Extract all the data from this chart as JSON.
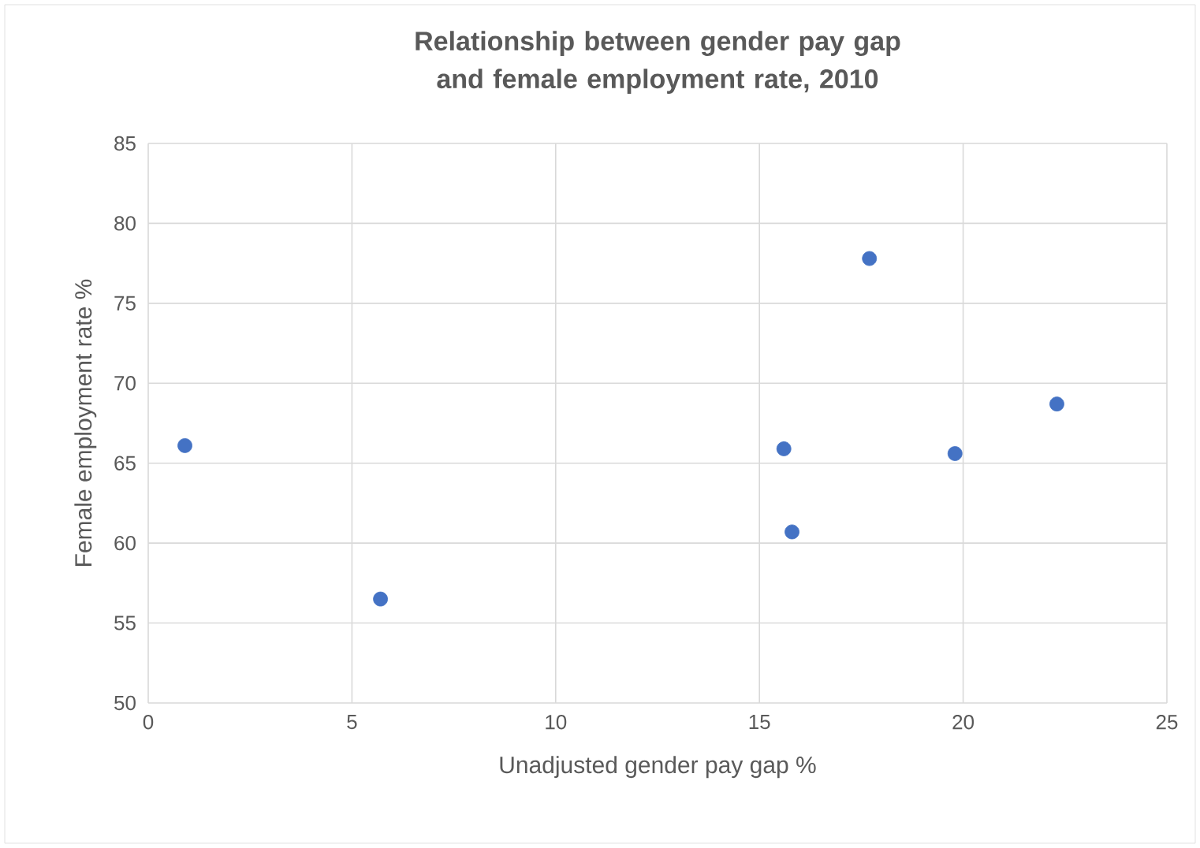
{
  "chart_data": {
    "type": "scatter",
    "title": "Relationship between gender pay gap and female employment rate, 2010",
    "xlabel": "Unadjusted gender pay gap %",
    "ylabel": "Female employment rate %",
    "x": [
      0.9,
      5.7,
      15.6,
      15.8,
      17.7,
      19.8,
      22.3
    ],
    "values": [
      66.1,
      56.5,
      65.9,
      60.7,
      77.8,
      65.6,
      68.7
    ],
    "color": "#4472c4",
    "marker": "circle",
    "grid": true,
    "xlim": [
      0,
      25
    ],
    "xticks": [
      0,
      5,
      10,
      15,
      20,
      25
    ],
    "ylim": [
      50,
      85
    ],
    "yticks": [
      50,
      55,
      60,
      65,
      70,
      75,
      80,
      85
    ]
  }
}
